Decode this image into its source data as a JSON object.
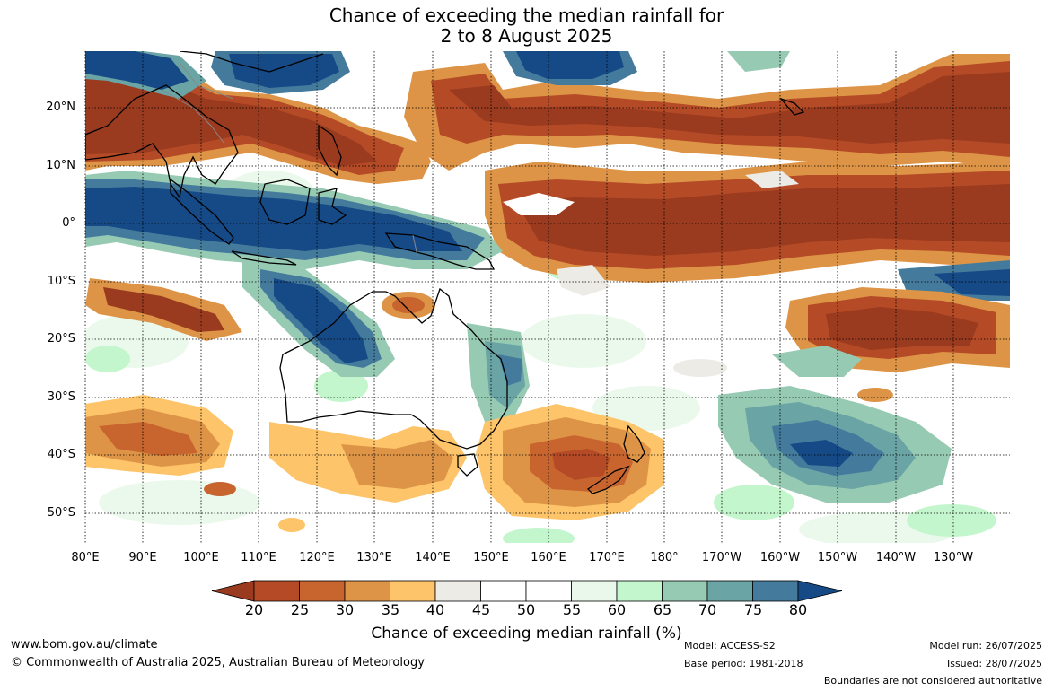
{
  "title": {
    "line1": "Chance of exceeding the median rainfall for",
    "line2": "2 to 8 August 2025"
  },
  "map": {
    "lat_labels": [
      "20°N",
      "10°N",
      "0°",
      "10°S",
      "20°S",
      "30°S",
      "40°S",
      "50°S"
    ],
    "lon_labels": [
      "80°E",
      "90°E",
      "100°E",
      "110°E",
      "120°E",
      "130°E",
      "140°E",
      "150°E",
      "160°E",
      "170°E",
      "180°",
      "170°W",
      "160°W",
      "150°W",
      "140°W",
      "130°W"
    ]
  },
  "colorbar": {
    "ticks": [
      "20",
      "25",
      "30",
      "35",
      "40",
      "45",
      "50",
      "55",
      "60",
      "65",
      "70",
      "75",
      "80"
    ],
    "colors": [
      "#9a3a1f",
      "#b44a26",
      "#c8652f",
      "#de9446",
      "#fdc469",
      "#ecebe6",
      "#ffffff",
      "#ffffff",
      "#e9f8ea",
      "#c4f6cd",
      "#96cab3",
      "#6aa4a4",
      "#447b9d",
      "#164a86"
    ],
    "label": "Chance of exceeding median rainfall (%)"
  },
  "footer": {
    "website": "www.bom.gov.au/climate",
    "copyright": "© Commonwealth of Australia 2025, Australian Bureau of Meteorology",
    "model": "Model: ACCESS-S2",
    "base_period": "Base period: 1981-2018",
    "model_run": "Model run: 26/07/2025",
    "issued": "Issued: 28/07/2025",
    "disclaimer": "Boundaries are not considered authoritative"
  }
}
